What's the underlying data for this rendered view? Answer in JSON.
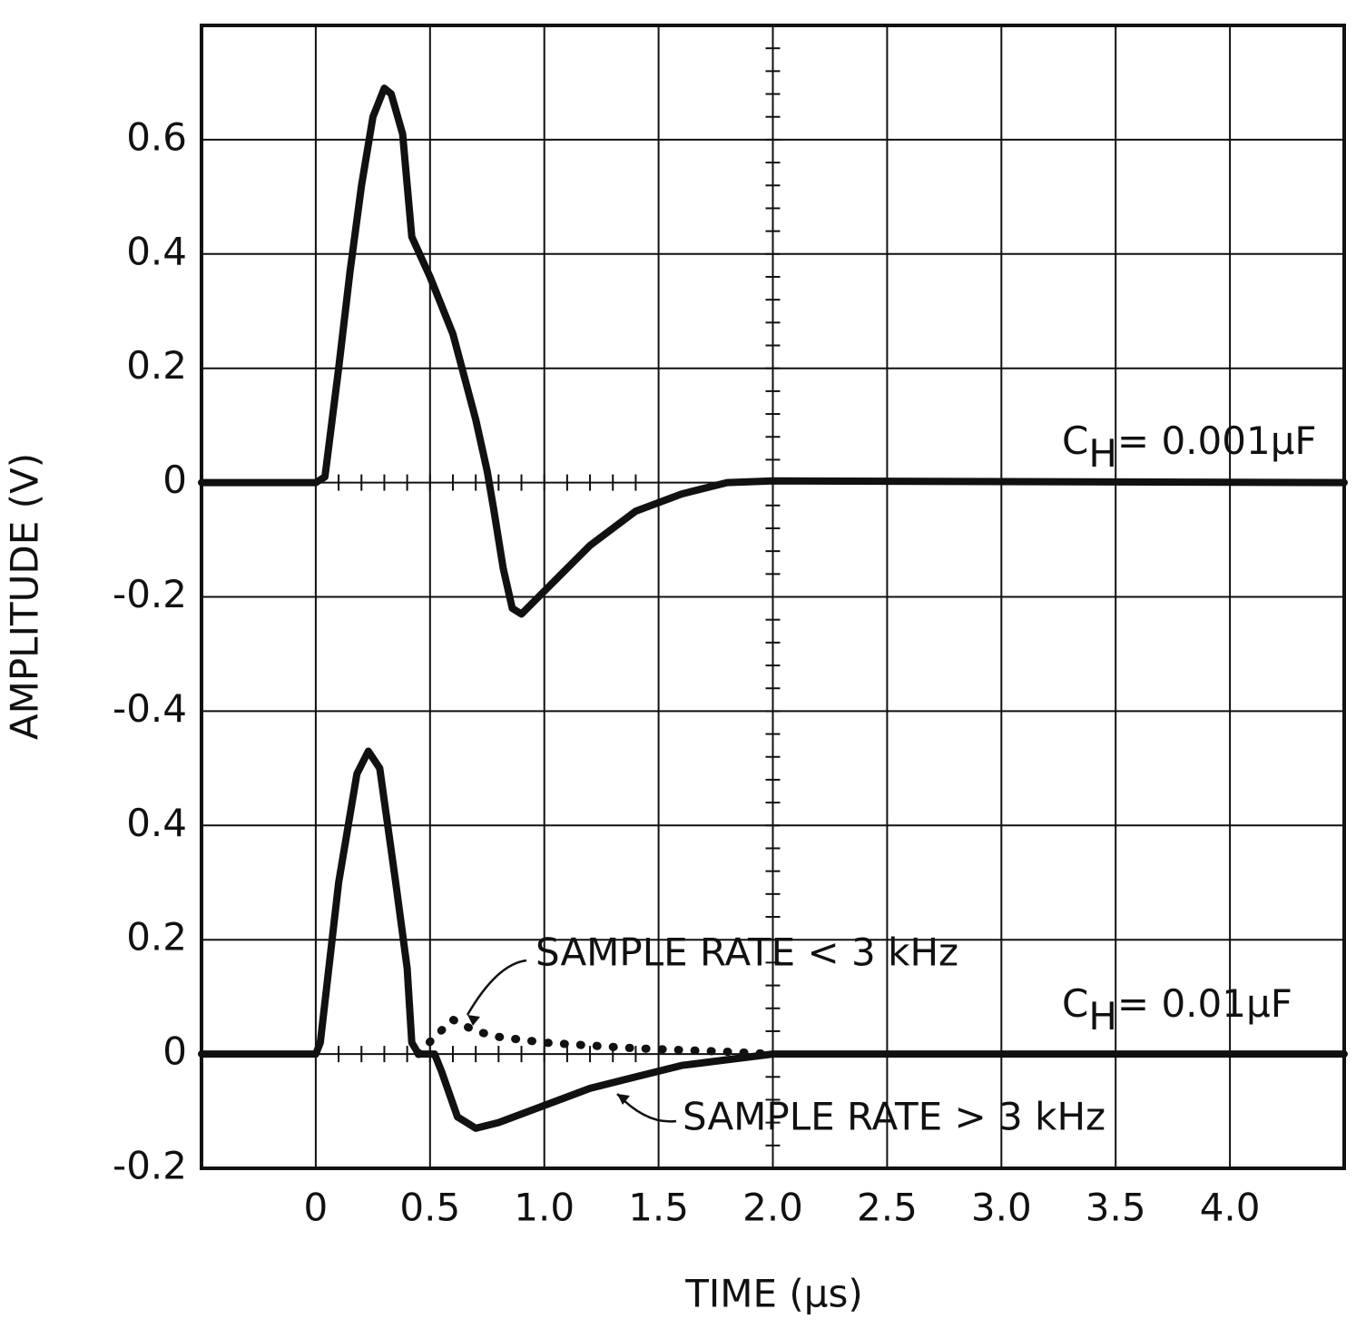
{
  "chart_data": [
    {
      "type": "line",
      "x_label": "TIME (μs)",
      "y_label": "AMPLITUDE (V)",
      "xlim": [
        -0.5,
        4.5
      ],
      "xticks": [
        0,
        0.5,
        {
          "value": 1,
          "label": "1.0"
        },
        1.5,
        {
          "value": 2,
          "label": "2.0"
        },
        2.5,
        {
          "value": 3,
          "label": "3.0"
        },
        3.5,
        {
          "value": 4,
          "label": "4.0"
        }
      ],
      "ylim": [
        -1.2,
        0.8
      ],
      "yticks": [
        0.6,
        0.4,
        0.2,
        0,
        -0.2,
        -0.4
      ],
      "grid": true,
      "annotations": [
        {
          "text": "C",
          "subscript": "H",
          "text_after": "= 0.001μF"
        }
      ],
      "series": [
        {
          "color": "#111111",
          "style": "solid",
          "x": [
            -0.5,
            0,
            0.04,
            0.1,
            0.15,
            0.2,
            0.25,
            0.3,
            0.33,
            0.38,
            0.42,
            0.5,
            0.6,
            0.7,
            0.75,
            0.78,
            0.82,
            0.86,
            0.9,
            1.0,
            1.2,
            1.4,
            1.6,
            1.8,
            2.0,
            4.5
          ],
          "values": [
            0,
            0,
            0.01,
            0.2,
            0.37,
            0.52,
            0.64,
            0.69,
            0.68,
            0.61,
            0.43,
            0.36,
            0.26,
            0.11,
            0.02,
            -0.05,
            -0.15,
            -0.22,
            -0.23,
            -0.19,
            -0.11,
            -0.05,
            -0.02,
            0,
            0.003,
            0
          ]
        }
      ]
    },
    {
      "type": "line",
      "ylim": [
        -0.2,
        1.8
      ],
      "yticks": [
        0.4,
        0.2,
        0,
        -0.2
      ],
      "annotations": [
        {
          "text": "C",
          "subscript": "H",
          "text_after": "= 0.01μF"
        }
      ],
      "series": [
        {
          "name": "SAMPLE RATE > 3 kHz",
          "color": "#111111",
          "style": "solid",
          "x": [
            -0.5,
            0,
            0.02,
            0.1,
            0.18,
            0.23,
            0.28,
            0.35,
            0.4,
            0.42,
            0.45,
            0.52,
            0.55,
            0.62,
            0.7,
            0.8,
            1.0,
            1.2,
            1.4,
            1.6,
            1.8,
            2.0,
            4.5
          ],
          "values": [
            0,
            0,
            0.02,
            0.3,
            0.49,
            0.53,
            0.5,
            0.3,
            0.15,
            0.02,
            0,
            0,
            -0.03,
            -0.11,
            -0.13,
            -0.12,
            -0.09,
            -0.06,
            -0.04,
            -0.02,
            -0.01,
            0,
            0
          ]
        },
        {
          "name": "SAMPLE RATE < 3 kHz",
          "color": "#111111",
          "style": "dotted",
          "x": [
            0.45,
            0.52,
            0.6,
            0.7,
            0.8,
            1.0,
            1.2,
            1.4,
            1.6,
            1.8,
            2.0
          ],
          "values": [
            0,
            0.03,
            0.06,
            0.04,
            0.03,
            0.02,
            0.015,
            0.01,
            0.007,
            0.004,
            0
          ]
        }
      ]
    }
  ]
}
